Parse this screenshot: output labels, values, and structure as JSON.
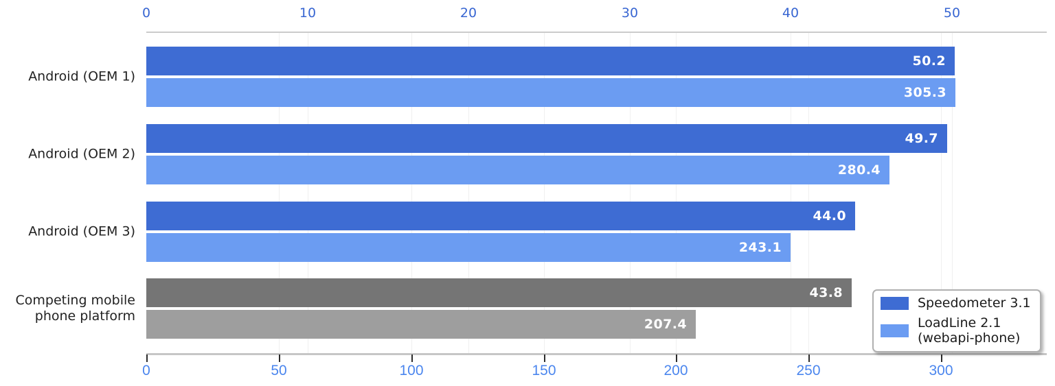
{
  "chart_data": {
    "type": "bar",
    "orientation": "horizontal",
    "title": "",
    "categories": [
      {
        "lines": [
          "Android (OEM 1)"
        ]
      },
      {
        "lines": [
          "Android (OEM 2)"
        ]
      },
      {
        "lines": [
          "Android (OEM 3)"
        ]
      },
      {
        "lines": [
          "Competing mobile",
          "phone platform"
        ]
      }
    ],
    "series": [
      {
        "key": "speedometer",
        "name": "Speedometer 3.1",
        "legend_lines": [
          "Speedometer 3.1"
        ],
        "axis": "top",
        "color": "#3e6cd3",
        "muted_color": "#757575",
        "values": [
          50.2,
          49.7,
          44.0,
          43.8
        ],
        "value_labels": [
          "50.2",
          "49.7",
          "44.0",
          "43.8"
        ]
      },
      {
        "key": "loadline",
        "name": "LoadLine 2.1 (webapi-phone)",
        "legend_lines": [
          "LoadLine 2.1",
          "(webapi-phone)"
        ],
        "axis": "bottom",
        "color": "#6b9cf2",
        "muted_color": "#9e9e9e",
        "values": [
          305.3,
          280.4,
          243.1,
          207.4
        ],
        "value_labels": [
          "305.3",
          "280.4",
          "243.1",
          "207.4"
        ]
      }
    ],
    "muted_rows": [
      3
    ],
    "axes": {
      "top": {
        "ticks": [
          0,
          10,
          20,
          30,
          40,
          50
        ],
        "range": [
          0,
          55.9
        ],
        "label_color": "#3866d2",
        "line_color": "#cbcbcb"
      },
      "bottom": {
        "ticks": [
          0,
          50,
          100,
          150,
          200,
          250,
          300
        ],
        "range": [
          0,
          339.9
        ],
        "label_color": "#4b86ee",
        "line_color": "#c6c6c6",
        "tickmark_color": "#2b2b2b"
      }
    },
    "grid": true,
    "legend_position": "bottom-right",
    "value_label_color": "#ffffff",
    "background_color": "#ffffff"
  }
}
